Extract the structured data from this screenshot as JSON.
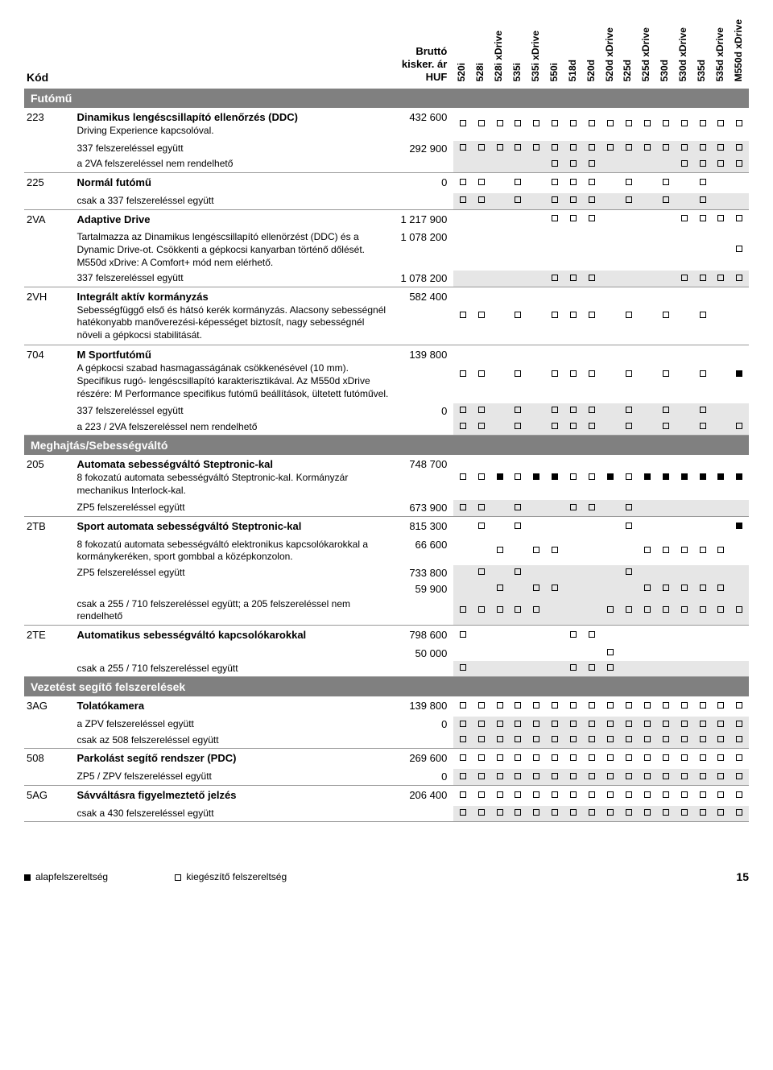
{
  "header": {
    "kod": "Kód",
    "price_header_l1": "Bruttó",
    "price_header_l2": "kisker. ár",
    "price_header_l3": "HUF",
    "models": [
      "520i",
      "528i",
      "528i xDrive",
      "535i",
      "535i xDrive",
      "550i",
      "518d",
      "520d",
      "520d xDrive",
      "525d",
      "525d xDrive",
      "530d",
      "530d xDrive",
      "535d",
      "535d xDrive",
      "M550d xDrive"
    ]
  },
  "sections": [
    {
      "title": "Futómű",
      "rows": [
        {
          "code": "223",
          "main": "Dinamikus lengéscsillapító ellenőrzés (DDC)",
          "sub": "Driving Experience kapcsolóval.",
          "price": "432 600",
          "marks": [
            "e",
            "e",
            "e",
            "e",
            "e",
            "e",
            "e",
            "e",
            "e",
            "e",
            "e",
            "e",
            "e",
            "e",
            "e",
            "e"
          ],
          "line": false
        },
        {
          "code": "",
          "note": "337 felszereléssel együtt",
          "price": "292 900",
          "marks": [
            "e",
            "e",
            "e",
            "e",
            "e",
            "e",
            "e",
            "e",
            "e",
            "e",
            "e",
            "e",
            "e",
            "e",
            "e",
            "e"
          ],
          "line": false,
          "shade": true,
          "slim": true
        },
        {
          "code": "",
          "note": "a 2VA felszereléssel nem rendelhető",
          "price": "",
          "marks": [
            "",
            "",
            "",
            "",
            "",
            "e",
            "e",
            "e",
            "",
            "",
            "",
            "",
            "e",
            "e",
            "e",
            "e"
          ],
          "line": true,
          "shade": true,
          "slim": true
        },
        {
          "code": "225",
          "main": "Normál futómű",
          "price": "0",
          "marks": [
            "e",
            "e",
            "",
            "e",
            "",
            "e",
            "e",
            "e",
            "",
            "e",
            "",
            "e",
            "",
            "e",
            "",
            ""
          ],
          "line": false
        },
        {
          "code": "",
          "note": "csak a 337 felszereléssel együtt",
          "price": "",
          "marks": [
            "e",
            "e",
            "",
            "e",
            "",
            "e",
            "e",
            "e",
            "",
            "e",
            "",
            "e",
            "",
            "e",
            "",
            ""
          ],
          "line": true,
          "shade": true,
          "slim": true
        },
        {
          "code": "2VA",
          "main": "Adaptive Drive",
          "price": "1 217 900",
          "marks": [
            "",
            "",
            "",
            "",
            "",
            "e",
            "e",
            "e",
            "",
            "",
            "",
            "",
            "e",
            "e",
            "e",
            "e"
          ],
          "line": false
        },
        {
          "code": "",
          "sub": "Tartalmazza az Dinamikus lengéscsillapító ellenörzést (DDC) és a Dynamic Drive-ot. Csökkenti a gépkocsi kanyarban történő dőlését. M550d xDrive: A Comfort+ mód nem elérhető.",
          "price": "1 078 200",
          "marks": [
            "",
            "",
            "",
            "",
            "",
            "",
            "",
            "",
            "",
            "",
            "",
            "",
            "",
            "",
            "",
            "e"
          ],
          "line": false,
          "slim": true
        },
        {
          "code": "",
          "note": "337 felszereléssel együtt",
          "price": "1 078 200",
          "marks": [
            "",
            "",
            "",
            "",
            "",
            "e",
            "e",
            "e",
            "",
            "",
            "",
            "",
            "e",
            "e",
            "e",
            "e"
          ],
          "line": true,
          "shade": true,
          "slim": true
        },
        {
          "code": "2VH",
          "main": "Integrált aktív kormányzás",
          "sub": "Sebességfüggő első és hátsó kerék kormányzás. Alacsony sebességnél hatékonyabb manőverezési-képességet biztosít, nagy sebességnél növeli a gépkocsi stabilitását.",
          "price": "582 400",
          "marks": [
            "e",
            "e",
            "",
            "e",
            "",
            "e",
            "e",
            "e",
            "",
            "e",
            "",
            "e",
            "",
            "e",
            "",
            ""
          ],
          "line": true
        },
        {
          "code": "704",
          "main": "M Sportfutómű",
          "sub": "A gépkocsi szabad hasmagasságának csökkenésével (10 mm). Specifikus rugó- lengéscsillapító karakterisztikával. Az M550d xDrive részére: M Performance specifikus futómű beállítások, ültetett futóművel.",
          "price": "139 800",
          "marks": [
            "e",
            "e",
            "",
            "e",
            "",
            "e",
            "e",
            "e",
            "",
            "e",
            "",
            "e",
            "",
            "e",
            "",
            "f"
          ],
          "line": false
        },
        {
          "code": "",
          "note": "337 felszereléssel együtt",
          "price": "0",
          "marks": [
            "e",
            "e",
            "",
            "e",
            "",
            "e",
            "e",
            "e",
            "",
            "e",
            "",
            "e",
            "",
            "e",
            "",
            ""
          ],
          "line": false,
          "shade": true,
          "slim": true
        },
        {
          "code": "",
          "note": "a 223 / 2VA felszereléssel nem rendelhető",
          "price": "",
          "marks": [
            "e",
            "e",
            "",
            "e",
            "",
            "e",
            "e",
            "e",
            "",
            "e",
            "",
            "e",
            "",
            "e",
            "",
            "e"
          ],
          "line": true,
          "shade": true,
          "slim": true
        }
      ]
    },
    {
      "title": "Meghajtás/Sebességváltó",
      "rows": [
        {
          "code": "205",
          "main": "Automata sebességváltó Steptronic-kal",
          "sub": "8 fokozatú automata sebességváltó Steptronic-kal. Kormányzár mechanikus Interlock-kal.",
          "price": "748 700",
          "marks": [
            "e",
            "e",
            "f",
            "e",
            "f",
            "f",
            "e",
            "e",
            "f",
            "e",
            "f",
            "f",
            "f",
            "f",
            "f",
            "f"
          ],
          "line": false
        },
        {
          "code": "",
          "note": "ZP5 felszereléssel együtt",
          "price": "673 900",
          "marks": [
            "e",
            "e",
            "",
            "e",
            "",
            "",
            "e",
            "e",
            "",
            "e",
            "",
            "",
            "",
            "",
            "",
            ""
          ],
          "line": true,
          "shade": true,
          "slim": true
        },
        {
          "code": "2TB",
          "main": "Sport automata sebességváltó Steptronic-kal",
          "price": "815 300",
          "marks": [
            "",
            "e",
            "",
            "e",
            "",
            "",
            "",
            "",
            "",
            "e",
            "",
            "",
            "",
            "",
            "",
            "f"
          ],
          "line": false
        },
        {
          "code": "",
          "sub": "8 fokozatú automata sebességváltó elektronikus kapcsolókarokkal a kormánykeréken, sport gombbal a középkonzolon.",
          "price": "66 600",
          "marks": [
            "",
            "",
            "e",
            "",
            "e",
            "e",
            "",
            "",
            "",
            "",
            "e",
            "e",
            "e",
            "e",
            "e",
            ""
          ],
          "line": false,
          "slim": true
        },
        {
          "code": "",
          "note": "ZP5 felszereléssel együtt",
          "price": "733 800",
          "marks": [
            "",
            "e",
            "",
            "e",
            "",
            "",
            "",
            "",
            "",
            "e",
            "",
            "",
            "",
            "",
            "",
            ""
          ],
          "line": false,
          "shade": true,
          "slim": true
        },
        {
          "code": "",
          "note": "",
          "price": "59 900",
          "marks": [
            "",
            "",
            "e",
            "",
            "e",
            "e",
            "",
            "",
            "",
            "",
            "e",
            "e",
            "e",
            "e",
            "e",
            ""
          ],
          "line": false,
          "shade": true,
          "slim": true
        },
        {
          "code": "",
          "note": "csak a 255 / 710 felszereléssel együtt; a 205 felszereléssel nem rendelhető",
          "price": "",
          "marks": [
            "e",
            "e",
            "e",
            "e",
            "e",
            "",
            "",
            "",
            "e",
            "e",
            "e",
            "e",
            "e",
            "e",
            "e",
            "e"
          ],
          "line": true,
          "shade": true,
          "slim": true
        },
        {
          "code": "2TE",
          "main": "Automatikus sebességváltó kapcsolókarokkal",
          "price": "798 600",
          "marks": [
            "e",
            "",
            "",
            "",
            "",
            "",
            "e",
            "e",
            "",
            "",
            "",
            "",
            "",
            "",
            "",
            ""
          ],
          "line": false
        },
        {
          "code": "",
          "note": "",
          "price": "50 000",
          "marks": [
            "",
            "",
            "",
            "",
            "",
            "",
            "",
            "",
            "e",
            "",
            "",
            "",
            "",
            "",
            "",
            ""
          ],
          "line": false,
          "slim": true
        },
        {
          "code": "",
          "note": "csak a 255 / 710 felszereléssel együtt",
          "price": "",
          "marks": [
            "e",
            "",
            "",
            "",
            "",
            "",
            "e",
            "e",
            "e",
            "",
            "",
            "",
            "",
            "",
            "",
            ""
          ],
          "line": true,
          "shade": true,
          "slim": true
        }
      ]
    },
    {
      "title": "Vezetést segítő felszerelések",
      "rows": [
        {
          "code": "3AG",
          "main": "Tolatókamera",
          "price": "139 800",
          "marks": [
            "e",
            "e",
            "e",
            "e",
            "e",
            "e",
            "e",
            "e",
            "e",
            "e",
            "e",
            "e",
            "e",
            "e",
            "e",
            "e"
          ],
          "line": false
        },
        {
          "code": "",
          "note": "a ZPV felszereléssel együtt",
          "price": "0",
          "marks": [
            "e",
            "e",
            "e",
            "e",
            "e",
            "e",
            "e",
            "e",
            "e",
            "e",
            "e",
            "e",
            "e",
            "e",
            "e",
            "e"
          ],
          "line": false,
          "shade": true,
          "slim": true
        },
        {
          "code": "",
          "note": "csak az 508 felszereléssel együtt",
          "price": "",
          "marks": [
            "e",
            "e",
            "e",
            "e",
            "e",
            "e",
            "e",
            "e",
            "e",
            "e",
            "e",
            "e",
            "e",
            "e",
            "e",
            "e"
          ],
          "line": true,
          "shade": true,
          "slim": true
        },
        {
          "code": "508",
          "main": "Parkolást segítő rendszer (PDC)",
          "price": "269 600",
          "marks": [
            "e",
            "e",
            "e",
            "e",
            "e",
            "e",
            "e",
            "e",
            "e",
            "e",
            "e",
            "e",
            "e",
            "e",
            "e",
            "e"
          ],
          "line": false
        },
        {
          "code": "",
          "note": "ZP5 / ZPV felszereléssel együtt",
          "price": "0",
          "marks": [
            "e",
            "e",
            "e",
            "e",
            "e",
            "e",
            "e",
            "e",
            "e",
            "e",
            "e",
            "e",
            "e",
            "e",
            "e",
            "e"
          ],
          "line": true,
          "shade": true,
          "slim": true
        },
        {
          "code": "5AG",
          "main": "Sávváltásra figyelmeztető jelzés",
          "price": "206 400",
          "marks": [
            "e",
            "e",
            "e",
            "e",
            "e",
            "e",
            "e",
            "e",
            "e",
            "e",
            "e",
            "e",
            "e",
            "e",
            "e",
            "e"
          ],
          "line": false
        },
        {
          "code": "",
          "note": "csak a 430 felszereléssel együtt",
          "price": "",
          "marks": [
            "e",
            "e",
            "e",
            "e",
            "e",
            "e",
            "e",
            "e",
            "e",
            "e",
            "e",
            "e",
            "e",
            "e",
            "e",
            "e"
          ],
          "line": true,
          "shade": true,
          "slim": true
        }
      ]
    }
  ],
  "legend": {
    "alap": "alapfelszereltség",
    "kieg": "kiegészítő felszereltség"
  },
  "pagenum": "15",
  "mark_map": {
    "e": "empty",
    "f": "full"
  },
  "colors": {
    "section_bg": "#808080",
    "section_fg": "#ffffff",
    "shade_bg": "#e6e6e6",
    "line": "#999999"
  }
}
